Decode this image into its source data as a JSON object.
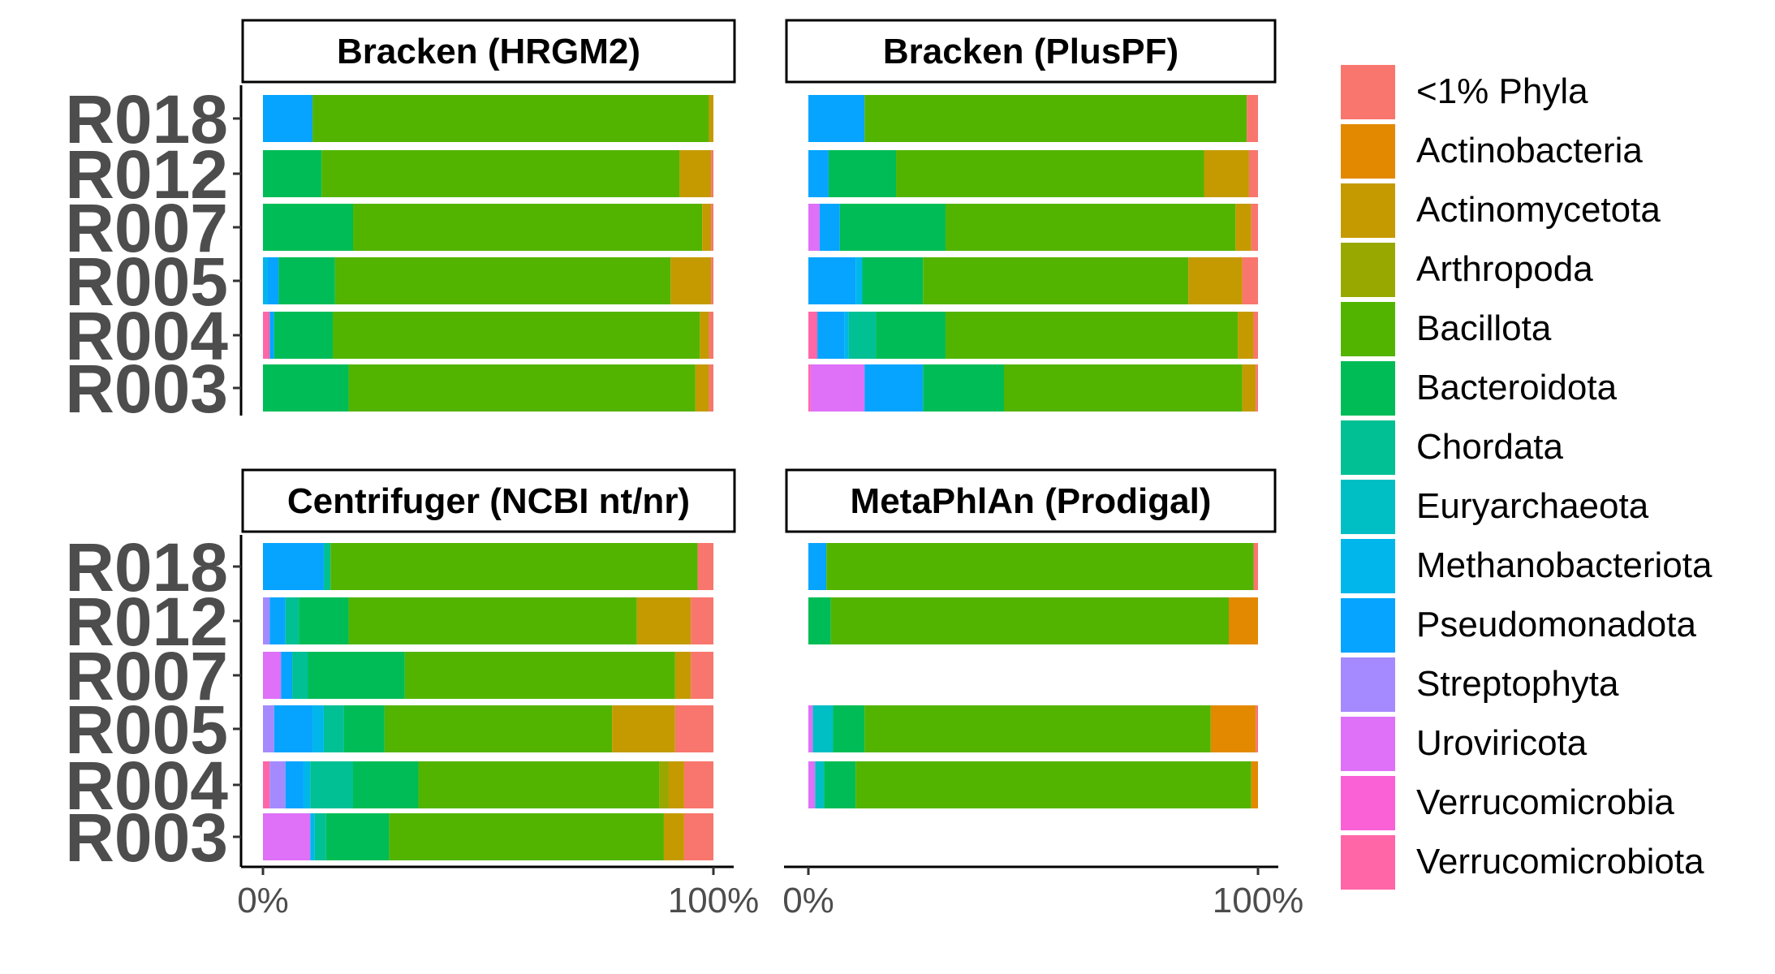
{
  "chart_data": {
    "type": "bar",
    "orientation": "horizontal",
    "stacked": true,
    "grid": false,
    "legend_position": "right",
    "samples": [
      "R003",
      "R004",
      "R005",
      "R007",
      "R012",
      "R018"
    ],
    "x_ticks": [
      "0%",
      "100%"
    ],
    "x_range": [
      0,
      100
    ],
    "legend": [
      {
        "name": "<1% Phyla",
        "color": "#F8766D"
      },
      {
        "name": "Actinobacteria",
        "color": "#E38900"
      },
      {
        "name": "Actinomycetota",
        "color": "#C49A00"
      },
      {
        "name": "Arthropoda",
        "color": "#99A800"
      },
      {
        "name": "Bacillota",
        "color": "#53B400"
      },
      {
        "name": "Bacteroidota",
        "color": "#00BC56"
      },
      {
        "name": "Chordata",
        "color": "#00C094"
      },
      {
        "name": "Euryarchaeota",
        "color": "#00BFC4"
      },
      {
        "name": "Methanobacteriota",
        "color": "#00B6EB"
      },
      {
        "name": "Pseudomonadota",
        "color": "#06A4FF"
      },
      {
        "name": "Streptophyta",
        "color": "#A58AFF"
      },
      {
        "name": "Uroviricota",
        "color": "#DF70F8"
      },
      {
        "name": "Verrucomicrobia",
        "color": "#FB61D7"
      },
      {
        "name": "Verrucomicrobiota",
        "color": "#FF66A8"
      }
    ],
    "panels": [
      {
        "title": "Bracken (HRGM2)",
        "bars": [
          {
            "sample": "R018",
            "segments": [
              [
                "Pseudomonadota",
                11
              ],
              [
                "Bacillota",
                88
              ],
              [
                "Actinomycetota",
                1
              ]
            ]
          },
          {
            "sample": "R012",
            "segments": [
              [
                "Bacteroidota",
                13
              ],
              [
                "Bacillota",
                79.5
              ],
              [
                "Actinomycetota",
                7
              ],
              [
                "<1% Phyla",
                0.5
              ]
            ]
          },
          {
            "sample": "R007",
            "segments": [
              [
                "Bacteroidota",
                20
              ],
              [
                "Bacillota",
                77.5
              ],
              [
                "Actinomycetota",
                2
              ],
              [
                "<1% Phyla",
                0.5
              ]
            ]
          },
          {
            "sample": "R005",
            "segments": [
              [
                "Methanobacteriota",
                1
              ],
              [
                "Pseudomonadota",
                2.5
              ],
              [
                "Bacteroidota",
                12.5
              ],
              [
                "Bacillota",
                74.5
              ],
              [
                "Actinomycetota",
                9
              ],
              [
                "<1% Phyla",
                0.5
              ]
            ]
          },
          {
            "sample": "R004",
            "segments": [
              [
                "Verrucomicrobiota",
                1.5
              ],
              [
                "Pseudomonadota",
                1
              ],
              [
                "Bacteroidota",
                13
              ],
              [
                "Bacillota",
                81.5
              ],
              [
                "Actinomycetota",
                2
              ],
              [
                "<1% Phyla",
                1
              ]
            ]
          },
          {
            "sample": "R003",
            "segments": [
              [
                "Bacteroidota",
                19
              ],
              [
                "Bacillota",
                77
              ],
              [
                "Actinomycetota",
                3
              ],
              [
                "<1% Phyla",
                1
              ]
            ]
          }
        ]
      },
      {
        "title": "Bracken (PlusPF)",
        "bars": [
          {
            "sample": "R018",
            "segments": [
              [
                "Pseudomonadota",
                12.5
              ],
              [
                "Bacillota",
                85
              ],
              [
                "<1% Phyla",
                2.5
              ]
            ]
          },
          {
            "sample": "R012",
            "segments": [
              [
                "Pseudomonadota",
                4.5
              ],
              [
                "Bacteroidota",
                15
              ],
              [
                "Bacillota",
                68.5
              ],
              [
                "Actinomycetota",
                10
              ],
              [
                "<1% Phyla",
                2
              ]
            ]
          },
          {
            "sample": "R007",
            "segments": [
              [
                "Uroviricota",
                2.5
              ],
              [
                "Pseudomonadota",
                4.5
              ],
              [
                "Bacteroidota",
                23.5
              ],
              [
                "Bacillota",
                64.5
              ],
              [
                "Actinomycetota",
                3.5
              ],
              [
                "<1% Phyla",
                1.5
              ]
            ]
          },
          {
            "sample": "R005",
            "segments": [
              [
                "Pseudomonadota",
                10.5
              ],
              [
                "Methanobacteriota",
                1.5
              ],
              [
                "Bacteroidota",
                13.5
              ],
              [
                "Bacillota",
                59
              ],
              [
                "Actinomycetota",
                12
              ],
              [
                "<1% Phyla",
                3.5
              ]
            ]
          },
          {
            "sample": "R004",
            "segments": [
              [
                "Verrucomicrobiota",
                2
              ],
              [
                "Pseudomonadota",
                6
              ],
              [
                "Methanobacteriota",
                1
              ],
              [
                "Chordata",
                6
              ],
              [
                "Bacteroidota",
                15.5
              ],
              [
                "Bacillota",
                65
              ],
              [
                "Actinomycetota",
                3.5
              ],
              [
                "<1% Phyla",
                1
              ]
            ]
          },
          {
            "sample": "R003",
            "segments": [
              [
                "Verrucomicrobiota",
                0.5
              ],
              [
                "Uroviricota",
                12
              ],
              [
                "Pseudomonadota",
                13
              ],
              [
                "Bacteroidota",
                18
              ],
              [
                "Bacillota",
                53
              ],
              [
                "Actinomycetota",
                3
              ],
              [
                "<1% Phyla",
                0.5
              ]
            ]
          }
        ]
      },
      {
        "title": "Centrifuger (NCBI nt/nr)",
        "bars": [
          {
            "sample": "R018",
            "segments": [
              [
                "Pseudomonadota",
                13.5
              ],
              [
                "Chordata",
                1.5
              ],
              [
                "Bacillota",
                81.5
              ],
              [
                "<1% Phyla",
                3.5
              ]
            ]
          },
          {
            "sample": "R012",
            "segments": [
              [
                "Streptophyta",
                1.5
              ],
              [
                "Pseudomonadota",
                3.5
              ],
              [
                "Chordata",
                3
              ],
              [
                "Bacteroidota",
                11
              ],
              [
                "Bacillota",
                64
              ],
              [
                "Actinomycetota",
                12
              ],
              [
                "<1% Phyla",
                5
              ]
            ]
          },
          {
            "sample": "R007",
            "segments": [
              [
                "Uroviricota",
                4
              ],
              [
                "Pseudomonadota",
                2.5
              ],
              [
                "Chordata",
                3.5
              ],
              [
                "Bacteroidota",
                21.5
              ],
              [
                "Bacillota",
                60
              ],
              [
                "Actinomycetota",
                3.5
              ],
              [
                "<1% Phyla",
                5
              ]
            ]
          },
          {
            "sample": "R005",
            "segments": [
              [
                "Streptophyta",
                2.5
              ],
              [
                "Pseudomonadota",
                8.5
              ],
              [
                "Methanobacteriota",
                2.5
              ],
              [
                "Chordata",
                4.5
              ],
              [
                "Bacteroidota",
                9
              ],
              [
                "Bacillota",
                50.5
              ],
              [
                "Actinomycetota",
                14
              ],
              [
                "<1% Phyla",
                8.5
              ]
            ]
          },
          {
            "sample": "R004",
            "segments": [
              [
                "Verrucomicrobiota",
                1.5
              ],
              [
                "Streptophyta",
                3.5
              ],
              [
                "Pseudomonadota",
                4
              ],
              [
                "Methanobacteriota",
                1.5
              ],
              [
                "Chordata",
                9.5
              ],
              [
                "Bacteroidota",
                14.5
              ],
              [
                "Bacillota",
                53.5
              ],
              [
                "Arthropoda",
                2
              ],
              [
                "Actinomycetota",
                3.5
              ],
              [
                "<1% Phyla",
                6.5
              ]
            ]
          },
          {
            "sample": "R003",
            "segments": [
              [
                "Uroviricota",
                10.5
              ],
              [
                "Methanobacteriota",
                1
              ],
              [
                "Chordata",
                2.5
              ],
              [
                "Bacteroidota",
                14
              ],
              [
                "Bacillota",
                61
              ],
              [
                "Actinomycetota",
                4.5
              ],
              [
                "<1% Phyla",
                6.5
              ]
            ]
          }
        ]
      },
      {
        "title": "MetaPhlAn (Prodigal)",
        "bars": [
          {
            "sample": "R018",
            "segments": [
              [
                "Pseudomonadota",
                4
              ],
              [
                "Bacillota",
                95
              ],
              [
                "<1% Phyla",
                1
              ]
            ]
          },
          {
            "sample": "R012",
            "segments": [
              [
                "Bacteroidota",
                5
              ],
              [
                "Bacillota",
                88.5
              ],
              [
                "Actinobacteria",
                6.5
              ]
            ]
          },
          {
            "sample": "R005",
            "segments": [
              [
                "Uroviricota",
                1
              ],
              [
                "Euryarchaeota",
                4.5
              ],
              [
                "Bacteroidota",
                7
              ],
              [
                "Bacillota",
                77
              ],
              [
                "Actinobacteria",
                10
              ],
              [
                "<1% Phyla",
                0.5
              ]
            ]
          },
          {
            "sample": "R004",
            "segments": [
              [
                "Uroviricota",
                1.5
              ],
              [
                "Euryarchaeota",
                2
              ],
              [
                "Bacteroidota",
                7
              ],
              [
                "Bacillota",
                88
              ],
              [
                "Actinobacteria",
                1.5
              ]
            ]
          }
        ]
      }
    ]
  }
}
